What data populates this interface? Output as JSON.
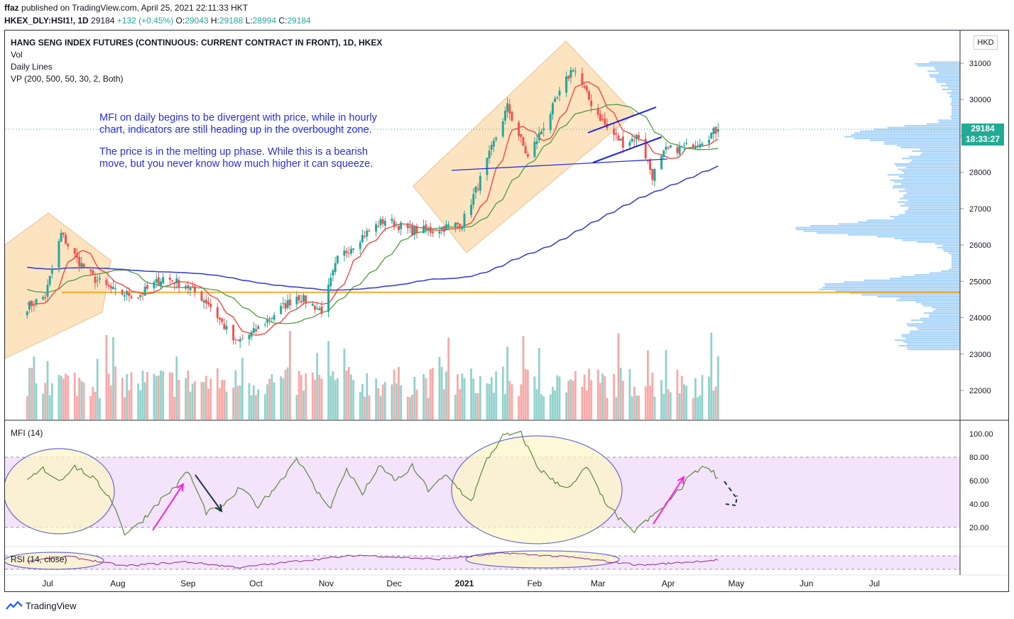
{
  "header": {
    "author": "ffaz",
    "published": "published on TradingView.com, April 25, 2021 22:11:33 HKT",
    "symbol": "HKEX_DLY:HSI1!, 1D",
    "last": "29184",
    "change": "+132 (+0.45%)",
    "open_label": "O:",
    "open": "29043",
    "high_label": "H:",
    "high": "29188",
    "low_label": "L:",
    "low": "28994",
    "close_label": "C:",
    "close": "29184"
  },
  "legend": {
    "title": "HANG SENG INDEX FUTURES (CONTINUOUS: CURRENT CONTRACT IN FRONT), 1D, HKEX",
    "vol": "Vol",
    "daily_lines": "Daily Lines",
    "vp": "VP (200, 500, 50, 30, 2, Both)"
  },
  "annotation": {
    "line1": "MFI on daily begins to be divergent with price, while in hourly",
    "line2": "chart, indicators are still heading up in the overbought zone.",
    "line3": "The price is in the melting up phase. While this is a bearish",
    "line4": "move, but you never know how much higher it can squeeze."
  },
  "currency": "HKD",
  "price_tag": {
    "price": "29184",
    "countdown": "18:33:27"
  },
  "colors": {
    "up": "#26a69a",
    "down": "#ef5350",
    "ma_red": "#f0473f",
    "ma_green": "#5aa04c",
    "ma_blue": "#3b44c8",
    "support": "#ff9800",
    "vp": "#8cc6f5",
    "mfi": "#5b8a3a",
    "rsi": "#8e2d8e",
    "arrow_magenta": "#ff1fd2",
    "arrow_dark": "#1e3a3f"
  },
  "mfi": {
    "label": "MFI (14)",
    "ticks": [
      "100.00",
      "80.00",
      "60.00",
      "40.00",
      "20.00"
    ]
  },
  "rsi": {
    "label": "RSI (14, close)"
  },
  "brand": "TradingView",
  "chart_data": {
    "type": "candlestick",
    "y_ticks": [
      "31000",
      "30000",
      "29000",
      "28000",
      "27000",
      "26000",
      "25000",
      "24000",
      "23000",
      "22000"
    ],
    "ylim": [
      21300,
      31400
    ],
    "x_ticks": [
      "Jul",
      "Aug",
      "Sep",
      "Oct",
      "Nov",
      "Dec",
      "2021",
      "Feb",
      "Mar",
      "Apr",
      "May",
      "Jun",
      "Jul"
    ],
    "price_anchors": [
      [
        "2020-06-22",
        24300
      ],
      [
        "2020-06-30",
        24600
      ],
      [
        "2020-07-07",
        26300
      ],
      [
        "2020-07-14",
        25600
      ],
      [
        "2020-07-21",
        25100
      ],
      [
        "2020-07-31",
        24700
      ],
      [
        "2020-08-10",
        24600
      ],
      [
        "2020-08-21",
        25100
      ],
      [
        "2020-08-31",
        24900
      ],
      [
        "2020-09-10",
        24400
      ],
      [
        "2020-09-22",
        23300
      ],
      [
        "2020-09-30",
        23600
      ],
      [
        "2020-10-09",
        24100
      ],
      [
        "2020-10-19",
        24600
      ],
      [
        "2020-10-30",
        24200
      ],
      [
        "2020-11-06",
        25600
      ],
      [
        "2020-11-16",
        26200
      ],
      [
        "2020-11-27",
        26700
      ],
      [
        "2020-12-08",
        26400
      ],
      [
        "2020-12-18",
        26400
      ],
      [
        "2020-12-31",
        26600
      ],
      [
        "2021-01-08",
        27800
      ],
      [
        "2021-01-20",
        29800
      ],
      [
        "2021-01-29",
        28400
      ],
      [
        "2021-02-10",
        29900
      ],
      [
        "2021-02-18",
        30900
      ],
      [
        "2021-02-25",
        30000
      ],
      [
        "2021-03-05",
        29200
      ],
      [
        "2021-03-12",
        28800
      ],
      [
        "2021-03-19",
        29000
      ],
      [
        "2021-03-25",
        27900
      ],
      [
        "2021-03-31",
        28600
      ],
      [
        "2021-04-09",
        28700
      ],
      [
        "2021-04-16",
        28900
      ],
      [
        "2021-04-23",
        29184
      ]
    ],
    "support_level": 24700,
    "mfi_anchors": [
      [
        "2020-06-22",
        60
      ],
      [
        "2020-06-29",
        70
      ],
      [
        "2020-07-06",
        60
      ],
      [
        "2020-07-13",
        72
      ],
      [
        "2020-07-20",
        64
      ],
      [
        "2020-07-29",
        45
      ],
      [
        "2020-08-04",
        15
      ],
      [
        "2020-08-10",
        22
      ],
      [
        "2020-08-18",
        40
      ],
      [
        "2020-08-28",
        58
      ],
      [
        "2020-09-01",
        68
      ],
      [
        "2020-09-09",
        33
      ],
      [
        "2020-09-16",
        36
      ],
      [
        "2020-09-24",
        54
      ],
      [
        "2020-10-02",
        38
      ],
      [
        "2020-10-12",
        60
      ],
      [
        "2020-10-19",
        80
      ],
      [
        "2020-10-28",
        50
      ],
      [
        "2020-11-03",
        38
      ],
      [
        "2020-11-10",
        70
      ],
      [
        "2020-11-17",
        48
      ],
      [
        "2020-11-24",
        72
      ],
      [
        "2020-12-02",
        60
      ],
      [
        "2020-12-09",
        72
      ],
      [
        "2020-12-16",
        52
      ],
      [
        "2020-12-24",
        64
      ],
      [
        "2021-01-04",
        42
      ],
      [
        "2021-01-11",
        78
      ],
      [
        "2021-01-18",
        98
      ],
      [
        "2021-01-26",
        100
      ],
      [
        "2021-02-02",
        72
      ],
      [
        "2021-02-09",
        60
      ],
      [
        "2021-02-17",
        54
      ],
      [
        "2021-02-24",
        72
      ],
      [
        "2021-03-02",
        48
      ],
      [
        "2021-03-09",
        30
      ],
      [
        "2021-03-16",
        16
      ],
      [
        "2021-03-23",
        26
      ],
      [
        "2021-03-29",
        36
      ],
      [
        "2021-04-06",
        52
      ],
      [
        "2021-04-12",
        68
      ],
      [
        "2021-04-19",
        72
      ],
      [
        "2021-04-23",
        62
      ]
    ],
    "rsi_anchors": [
      [
        "2020-06-22",
        55
      ],
      [
        "2020-07-10",
        68
      ],
      [
        "2020-08-04",
        40
      ],
      [
        "2020-08-31",
        52
      ],
      [
        "2020-09-24",
        35
      ],
      [
        "2020-10-20",
        55
      ],
      [
        "2020-11-15",
        72
      ],
      [
        "2020-12-20",
        60
      ],
      [
        "2021-01-20",
        78
      ],
      [
        "2021-02-18",
        65
      ],
      [
        "2021-03-20",
        42
      ],
      [
        "2021-04-23",
        58
      ]
    ],
    "mfi_ylim": [
      0,
      110
    ]
  }
}
